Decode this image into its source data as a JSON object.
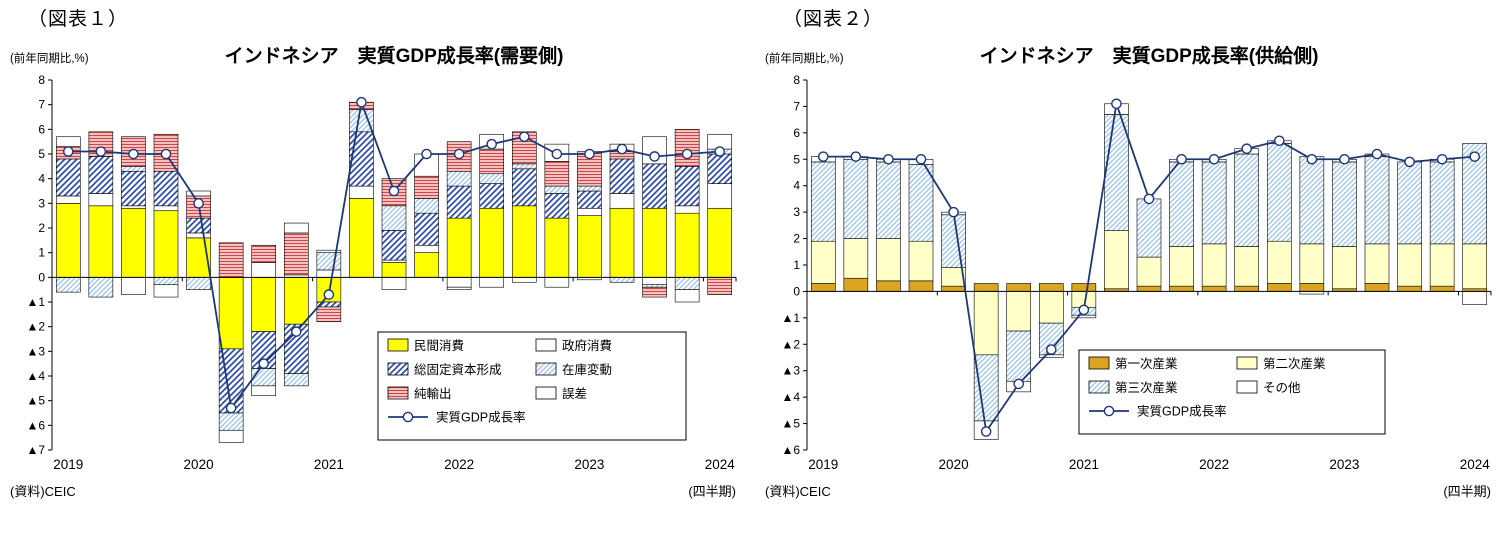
{
  "chart_data": [
    {
      "key": "demand",
      "type": "stacked_bar_line",
      "figure_label": "（図表１）",
      "title": "インドネシア　実質GDP成長率(需要側)",
      "unit_label": "(前年同期比,%)",
      "source": "(資料)CEIC",
      "x_note": "(四半期)",
      "ylim": [
        -7,
        8
      ],
      "y_tick_step": 1,
      "negative_prefix": "▲",
      "quarters": [
        "2019Q1",
        "2019Q2",
        "2019Q3",
        "2019Q4",
        "2020Q1",
        "2020Q2",
        "2020Q3",
        "2020Q4",
        "2021Q1",
        "2021Q2",
        "2021Q3",
        "2021Q4",
        "2022Q1",
        "2022Q2",
        "2022Q3",
        "2022Q4",
        "2023Q1",
        "2023Q2",
        "2023Q3",
        "2023Q4",
        "2024Q1"
      ],
      "x_year_labels": [
        {
          "label": "2019",
          "index": 0
        },
        {
          "label": "2020",
          "index": 4
        },
        {
          "label": "2021",
          "index": 8
        },
        {
          "label": "2022",
          "index": 12
        },
        {
          "label": "2023",
          "index": 16
        },
        {
          "label": "2024",
          "index": 20
        }
      ],
      "series": [
        {
          "name": "民間消費",
          "fill": "#FFFF00",
          "values": [
            3.0,
            2.9,
            2.8,
            2.7,
            1.6,
            -2.9,
            -2.2,
            -1.9,
            -1.0,
            3.2,
            0.6,
            1.0,
            2.4,
            2.8,
            2.9,
            2.4,
            2.5,
            2.8,
            2.8,
            2.6,
            2.8
          ]
        },
        {
          "name": "政府消費",
          "fill": "#FFFFFF",
          "values": [
            0.3,
            0.5,
            0.1,
            0.2,
            0.2,
            0.0,
            0.6,
            0.1,
            0.3,
            0.5,
            0.1,
            0.3,
            -0.4,
            -0.4,
            -0.2,
            -0.4,
            0.3,
            0.6,
            -0.3,
            0.3,
            1.0
          ]
        },
        {
          "name": "総固定資本形成",
          "pattern": "diagBlue",
          "values": [
            1.5,
            1.5,
            1.4,
            1.4,
            0.6,
            -2.6,
            -1.5,
            -2.0,
            -0.2,
            2.2,
            1.2,
            1.3,
            1.3,
            1.0,
            1.5,
            1.0,
            0.7,
            1.4,
            1.8,
            1.6,
            1.2
          ]
        },
        {
          "name": "在庫変動",
          "pattern": "diagLight",
          "values": [
            -0.6,
            -0.8,
            0.2,
            -0.3,
            -0.5,
            -0.7,
            -0.7,
            -0.5,
            0.7,
            0.9,
            1.0,
            0.6,
            0.6,
            0.4,
            0.2,
            0.3,
            0.2,
            -0.2,
            -0.1,
            -0.5,
            0.2
          ]
        },
        {
          "name": "純輸出",
          "pattern": "redStripes",
          "values": [
            0.5,
            1.0,
            1.2,
            1.5,
            0.9,
            1.4,
            0.7,
            1.7,
            -0.6,
            0.3,
            1.1,
            0.9,
            1.2,
            1.0,
            1.3,
            1.0,
            1.4,
            0.3,
            -0.4,
            1.5,
            -0.7
          ]
        },
        {
          "name": "誤差",
          "fill": "#FFFFFF",
          "values": [
            0.4,
            0.0,
            -0.7,
            -0.5,
            0.2,
            -0.5,
            -0.4,
            0.4,
            0.1,
            0.0,
            -0.5,
            0.9,
            -0.1,
            0.6,
            0.0,
            0.7,
            -0.1,
            0.3,
            1.1,
            -0.5,
            0.6
          ]
        }
      ],
      "line": {
        "name": "実質GDP成長率",
        "color": "#1F3874",
        "values": [
          5.1,
          5.1,
          5.0,
          5.0,
          3.0,
          -5.3,
          -3.5,
          -2.2,
          -0.7,
          7.1,
          3.5,
          5.0,
          5.0,
          5.4,
          5.7,
          5.0,
          5.0,
          5.2,
          4.9,
          5.0,
          5.1
        ]
      }
    },
    {
      "key": "supply",
      "type": "stacked_bar_line",
      "figure_label": "（図表２）",
      "title": "インドネシア　実質GDP成長率(供給側)",
      "unit_label": "(前年同期比,%)",
      "source": "(資料)CEIC",
      "x_note": "(四半期)",
      "ylim": [
        -6,
        8
      ],
      "y_tick_step": 1,
      "negative_prefix": "▲",
      "quarters": [
        "2019Q1",
        "2019Q2",
        "2019Q3",
        "2019Q4",
        "2020Q1",
        "2020Q2",
        "2020Q3",
        "2020Q4",
        "2021Q1",
        "2021Q2",
        "2021Q3",
        "2021Q4",
        "2022Q1",
        "2022Q2",
        "2022Q3",
        "2022Q4",
        "2023Q1",
        "2023Q2",
        "2023Q3",
        "2023Q4",
        "2024Q1"
      ],
      "x_year_labels": [
        {
          "label": "2019",
          "index": 0
        },
        {
          "label": "2020",
          "index": 4
        },
        {
          "label": "2021",
          "index": 8
        },
        {
          "label": "2022",
          "index": 12
        },
        {
          "label": "2023",
          "index": 16
        },
        {
          "label": "2024",
          "index": 20
        }
      ],
      "series": [
        {
          "name": "第一次産業",
          "fill": "#DAA520",
          "values": [
            0.3,
            0.5,
            0.4,
            0.4,
            0.2,
            0.3,
            0.3,
            0.3,
            0.3,
            0.1,
            0.2,
            0.2,
            0.2,
            0.2,
            0.3,
            0.3,
            0.1,
            0.3,
            0.2,
            0.2,
            0.1
          ]
        },
        {
          "name": "第二次産業",
          "fill": "#FFFFC8",
          "values": [
            1.6,
            1.5,
            1.6,
            1.5,
            0.7,
            -2.4,
            -1.5,
            -1.2,
            -0.6,
            2.2,
            1.1,
            1.5,
            1.6,
            1.5,
            1.6,
            1.5,
            1.6,
            1.5,
            1.6,
            1.6,
            1.7
          ]
        },
        {
          "name": "第三次産業",
          "pattern": "diagLight",
          "values": [
            3.0,
            3.0,
            2.9,
            2.9,
            2.0,
            -2.5,
            -1.9,
            -1.2,
            -0.3,
            4.4,
            2.2,
            3.2,
            3.1,
            3.5,
            3.7,
            3.3,
            3.2,
            3.3,
            3.1,
            3.1,
            3.8
          ]
        },
        {
          "name": "その他",
          "fill": "#FFFFFF",
          "values": [
            0.2,
            0.1,
            0.1,
            0.2,
            0.1,
            -0.7,
            -0.4,
            -0.1,
            -0.1,
            0.4,
            0.0,
            0.1,
            0.1,
            0.2,
            0.1,
            -0.1,
            0.1,
            0.1,
            0.0,
            0.1,
            -0.5
          ]
        }
      ],
      "line": {
        "name": "実質GDP成長率",
        "color": "#1F3874",
        "values": [
          5.1,
          5.1,
          5.0,
          5.0,
          3.0,
          -5.3,
          -3.5,
          -2.2,
          -0.7,
          7.1,
          3.5,
          5.0,
          5.0,
          5.4,
          5.7,
          5.0,
          5.0,
          5.2,
          4.9,
          5.0,
          5.1
        ]
      }
    }
  ]
}
